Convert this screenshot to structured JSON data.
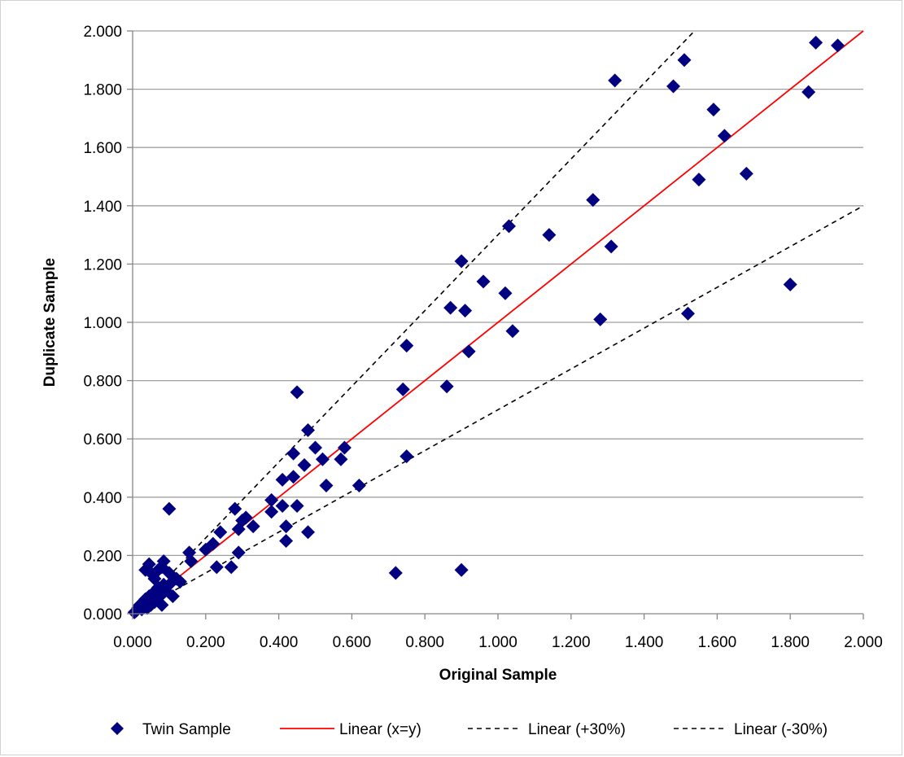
{
  "chart_data": {
    "type": "scatter",
    "xlabel": "Original Sample",
    "ylabel": "Duplicate Sample",
    "xlim": [
      0,
      2
    ],
    "ylim": [
      0,
      2
    ],
    "x_ticks": [
      "0.000",
      "0.200",
      "0.400",
      "0.600",
      "0.800",
      "1.000",
      "1.200",
      "1.400",
      "1.600",
      "1.800",
      "2.000"
    ],
    "y_ticks": [
      "0.000",
      "0.200",
      "0.400",
      "0.600",
      "0.800",
      "1.000",
      "1.200",
      "1.400",
      "1.600",
      "1.800",
      "2.000"
    ],
    "grid": "horizontal",
    "legend_position": "bottom",
    "legend": {
      "scatter": "Twin Sample",
      "line_equal": "Linear (x=y)",
      "line_plus": "Linear (+30%)",
      "line_minus": "Linear (-30%)"
    },
    "colors": {
      "points": "#000080",
      "line_equal": "#ff0000",
      "dashed": "#000000",
      "grid": "#a0a0a0"
    },
    "series": [
      {
        "name": "Twin Sample",
        "kind": "scatter",
        "points": [
          [
            0.005,
            0.005
          ],
          [
            0.01,
            0.01
          ],
          [
            0.015,
            0.02
          ],
          [
            0.02,
            0.03
          ],
          [
            0.025,
            0.015
          ],
          [
            0.03,
            0.04
          ],
          [
            0.035,
            0.05
          ],
          [
            0.04,
            0.02
          ],
          [
            0.045,
            0.06
          ],
          [
            0.05,
            0.03
          ],
          [
            0.055,
            0.07
          ],
          [
            0.06,
            0.04
          ],
          [
            0.065,
            0.05
          ],
          [
            0.07,
            0.09
          ],
          [
            0.075,
            0.06
          ],
          [
            0.08,
            0.03
          ],
          [
            0.085,
            0.1
          ],
          [
            0.09,
            0.08
          ],
          [
            0.1,
            0.1
          ],
          [
            0.11,
            0.06
          ],
          [
            0.12,
            0.12
          ],
          [
            0.13,
            0.11
          ],
          [
            0.035,
            0.15
          ],
          [
            0.045,
            0.17
          ],
          [
            0.05,
            0.14
          ],
          [
            0.06,
            0.12
          ],
          [
            0.07,
            0.15
          ],
          [
            0.08,
            0.16
          ],
          [
            0.085,
            0.18
          ],
          [
            0.1,
            0.14
          ],
          [
            0.1,
            0.36
          ],
          [
            0.155,
            0.21
          ],
          [
            0.16,
            0.18
          ],
          [
            0.2,
            0.22
          ],
          [
            0.22,
            0.24
          ],
          [
            0.23,
            0.16
          ],
          [
            0.24,
            0.28
          ],
          [
            0.27,
            0.16
          ],
          [
            0.28,
            0.36
          ],
          [
            0.29,
            0.21
          ],
          [
            0.29,
            0.29
          ],
          [
            0.3,
            0.32
          ],
          [
            0.31,
            0.33
          ],
          [
            0.33,
            0.3
          ],
          [
            0.38,
            0.39
          ],
          [
            0.38,
            0.35
          ],
          [
            0.41,
            0.46
          ],
          [
            0.41,
            0.37
          ],
          [
            0.42,
            0.25
          ],
          [
            0.42,
            0.3
          ],
          [
            0.44,
            0.47
          ],
          [
            0.44,
            0.55
          ],
          [
            0.45,
            0.37
          ],
          [
            0.45,
            0.76
          ],
          [
            0.47,
            0.51
          ],
          [
            0.48,
            0.28
          ],
          [
            0.48,
            0.63
          ],
          [
            0.5,
            0.57
          ],
          [
            0.52,
            0.53
          ],
          [
            0.53,
            0.44
          ],
          [
            0.57,
            0.53
          ],
          [
            0.58,
            0.57
          ],
          [
            0.62,
            0.44
          ],
          [
            0.72,
            0.14
          ],
          [
            0.74,
            0.77
          ],
          [
            0.75,
            0.92
          ],
          [
            0.75,
            0.54
          ],
          [
            0.86,
            0.78
          ],
          [
            0.87,
            1.05
          ],
          [
            0.9,
            1.21
          ],
          [
            0.9,
            0.15
          ],
          [
            0.91,
            1.04
          ],
          [
            0.92,
            0.9
          ],
          [
            0.96,
            1.14
          ],
          [
            1.02,
            1.1
          ],
          [
            1.03,
            1.33
          ],
          [
            1.04,
            0.97
          ],
          [
            1.14,
            1.3
          ],
          [
            1.26,
            1.42
          ],
          [
            1.28,
            1.01
          ],
          [
            1.31,
            1.26
          ],
          [
            1.32,
            1.83
          ],
          [
            1.48,
            1.81
          ],
          [
            1.51,
            1.9
          ],
          [
            1.52,
            1.03
          ],
          [
            1.55,
            1.49
          ],
          [
            1.59,
            1.73
          ],
          [
            1.62,
            1.64
          ],
          [
            1.68,
            1.51
          ],
          [
            1.8,
            1.13
          ],
          [
            1.85,
            1.79
          ],
          [
            1.87,
            1.96
          ],
          [
            1.93,
            1.95
          ]
        ]
      },
      {
        "name": "Linear (x=y)",
        "kind": "line",
        "points": [
          [
            0.01,
            0.01
          ],
          [
            2.0,
            2.0
          ]
        ]
      },
      {
        "name": "Linear (+30%)",
        "kind": "line",
        "points": [
          [
            0.01,
            0.013
          ],
          [
            1.538,
            2.0
          ]
        ]
      },
      {
        "name": "Linear (-30%)",
        "kind": "line",
        "points": [
          [
            0.01,
            0.007
          ],
          [
            2.0,
            1.4
          ]
        ]
      }
    ]
  }
}
